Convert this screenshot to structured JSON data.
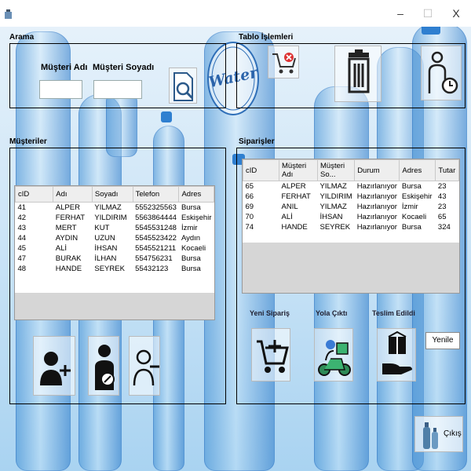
{
  "window": {
    "minimize": "–",
    "maximize": "☐",
    "close": "X"
  },
  "search_group": {
    "title": "Arama",
    "first_name_label": "Müşteri Adı",
    "last_name_label": "Müşteri Soyadı",
    "first_name_value": "",
    "last_name_value": ""
  },
  "table_ops_group": {
    "title": "Tablo İşlemleri"
  },
  "customers": {
    "title": "Müşteriler",
    "columns": [
      "cID",
      "Adı",
      "Soyadı",
      "Telefon",
      "Adres"
    ],
    "rows": [
      [
        "41",
        "ALPER",
        "YILMAZ",
        "5552325563",
        "Bursa"
      ],
      [
        "42",
        "FERHAT",
        "YILDIRIM",
        "5563864444",
        "Eskişehir"
      ],
      [
        "43",
        "MERT",
        "KUT",
        "5545531248",
        "İzmir"
      ],
      [
        "44",
        "AYDIN",
        "UZUN",
        "5545523422",
        "Aydın"
      ],
      [
        "45",
        "ALİ",
        "İHSAN",
        "5545521211",
        "Kocaeli"
      ],
      [
        "47",
        "BURAK",
        "İLHAN",
        "554756231",
        "Bursa"
      ],
      [
        "48",
        "HANDE",
        "SEYREK",
        "55432123",
        "Bursa"
      ]
    ]
  },
  "orders": {
    "title": "Siparişler",
    "columns": [
      "cID",
      "Müşteri Adı",
      "Müşteri So...",
      "Durum",
      "Adres",
      "Tutar"
    ],
    "rows": [
      [
        "65",
        "ALPER",
        "YILMAZ",
        "Hazırlanıyor",
        "Bursa",
        "23"
      ],
      [
        "66",
        "FERHAT",
        "YILDIRIM",
        "Hazırlanıyor",
        "Eskişehir",
        "43"
      ],
      [
        "69",
        "ANIL",
        "YILMAZ",
        "Hazırlanıyor",
        "İzmir",
        "23"
      ],
      [
        "70",
        "ALİ",
        "İHSAN",
        "Hazırlanıyor",
        "Kocaeli",
        "65"
      ],
      [
        "74",
        "HANDE",
        "SEYREK",
        "Hazırlanıyor",
        "Bursa",
        "324"
      ]
    ]
  },
  "actions": {
    "new_order": "Yeni Sipariş",
    "on_the_way": "Yola Çıktı",
    "delivered": "Teslim Edildi",
    "refresh": "Yenile",
    "exit": "Çıkış"
  },
  "logo": {
    "text": "Water"
  }
}
